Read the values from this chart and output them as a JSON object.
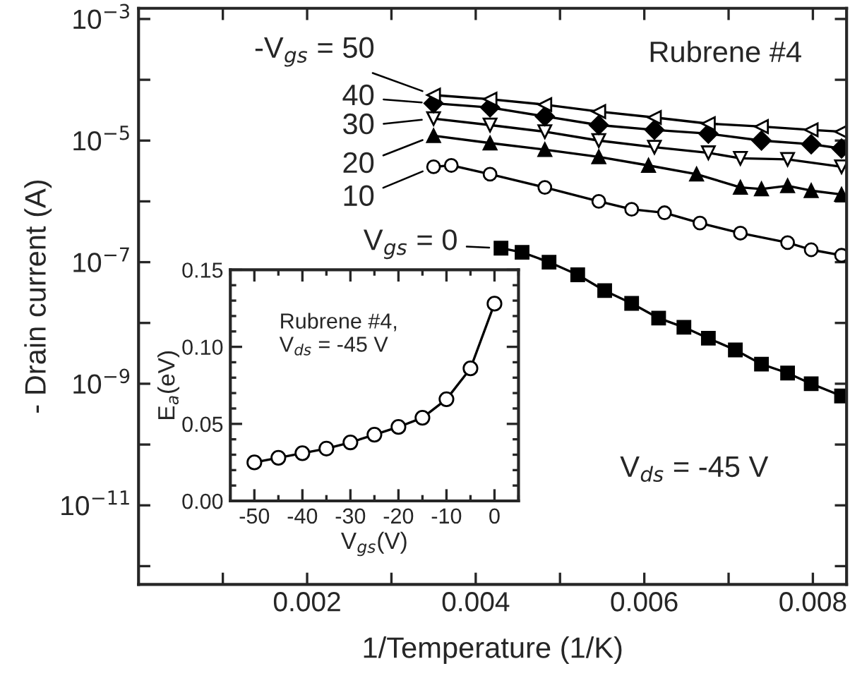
{
  "chart_data": [
    {
      "type": "line",
      "xlabel": "1/Temperature (1/K)",
      "ylabel": "- Drain current (A)",
      "log": "y",
      "grid": false,
      "legend": "top left",
      "xlim": [
        0,
        0.0084
      ],
      "xticks": [
        {
          "value": 0.001,
          "label": null
        },
        0.002,
        {
          "value": 0.003,
          "label": null
        },
        0.004,
        {
          "value": 0.005,
          "label": null
        },
        0.006,
        {
          "value": 0.007,
          "label": null
        },
        0.008
      ],
      "ylim": [
        5e-13,
        0.0015
      ],
      "yticks": [
        {
          "value": 1e-12,
          "label": null
        },
        {
          "value": 1e-11,
          "label": "10$^{−11}$"
        },
        {
          "value": 1e-10,
          "label": null
        },
        {
          "value": 1e-09,
          "label": "10$^{−9}$"
        },
        {
          "value": 1e-08,
          "label": null
        },
        {
          "value": 1e-07,
          "label": "10$^{−7}$"
        },
        {
          "value": 1e-06,
          "label": null
        },
        {
          "value": 1e-05,
          "label": "10$^{−5}$"
        },
        {
          "value": 0.0001,
          "label": null
        },
        {
          "value": 0.001,
          "label": "10$^{−3}$"
        }
      ],
      "annotations": [
        "Rubrene #4",
        "V$_{ds}$ = -45 V"
      ],
      "series": [
        {
          "name": "V$_{gs}$ = 0",
          "color": "#000000",
          "marker": "square",
          "x": [
            0.0043,
            0.00455,
            0.00487,
            0.00521,
            0.00553,
            0.00585,
            0.00617,
            0.00647,
            0.00676,
            0.00708,
            0.00739,
            0.0077,
            0.00798,
            0.00834
          ],
          "values": [
            1.7e-07,
            1.45e-07,
            1e-07,
            6.2e-08,
            3.4e-08,
            2.1e-08,
            1.2e-08,
            8.5e-09,
            5.6e-09,
            3.6e-09,
            2.1e-09,
            1.5e-09,
            1e-09,
            6.3e-10
          ]
        },
        {
          "name": "10",
          "color": "#000000",
          "marker": "circle",
          "x": [
            0.0035,
            0.00371,
            0.00417,
            0.00482,
            0.00546,
            0.00585,
            0.00624,
            0.00666,
            0.00714,
            0.0077,
            0.00798,
            0.00834
          ],
          "values": [
            3.7e-06,
            3.9e-06,
            2.8e-06,
            1.7e-06,
            1e-06,
            7.4e-07,
            6.5e-07,
            4.4e-07,
            3e-07,
            2.1e-07,
            1.6e-07,
            1.3e-07
          ]
        },
        {
          "name": "20",
          "color": "#000000",
          "marker": "triangle",
          "x": [
            0.0035,
            0.00417,
            0.00482,
            0.00546,
            0.00605,
            0.00662,
            0.00714,
            0.00739,
            0.0077,
            0.00798,
            0.00834
          ],
          "values": [
            1.2e-05,
            9.1e-06,
            7.1e-06,
            5.4e-06,
            3.9e-06,
            2.8e-06,
            1.7e-06,
            1.6e-06,
            1.8e-06,
            1.5e-06,
            1.3e-06
          ]
        },
        {
          "name": "30",
          "color": "#000000",
          "marker": "triangle_down",
          "x": [
            0.0035,
            0.00417,
            0.00482,
            0.00546,
            0.00612,
            0.00676,
            0.00714,
            0.0077,
            0.00834
          ],
          "values": [
            2.3e-05,
            1.8e-05,
            1.4e-05,
            1e-05,
            7.8e-06,
            6.3e-06,
            5.1e-06,
            4.9e-06,
            3.7e-06
          ]
        },
        {
          "name": "40",
          "color": "#000000",
          "marker": "diamond",
          "x": [
            0.0035,
            0.00417,
            0.00482,
            0.00546,
            0.00612,
            0.00676,
            0.00739,
            0.00798,
            0.00834
          ],
          "values": [
            4.1e-05,
            3.5e-05,
            2.5e-05,
            1.8e-05,
            1.5e-05,
            1.3e-05,
            1e-05,
            8.7e-06,
            7.4e-06
          ]
        },
        {
          "name": "-V$_{gs}$ = 50",
          "color": "#000000",
          "marker": "triangle_left",
          "x": [
            0.0035,
            0.00417,
            0.00482,
            0.00546,
            0.00612,
            0.00676,
            0.00739,
            0.00798,
            0.00834
          ],
          "values": [
            5.6e-05,
            4.8e-05,
            3.9e-05,
            3e-05,
            2.4e-05,
            1.9e-05,
            1.7e-05,
            1.5e-05,
            1.4e-05
          ]
        }
      ]
    },
    {
      "type": "line",
      "xlabel": "V$_{gs}$(V)",
      "ylabel": "E$_{a}$(eV)",
      "legend": false,
      "grid": false,
      "marker": "circle",
      "xlim": [
        -55,
        5
      ],
      "xticks": [
        -50,
        -40,
        -30,
        -20,
        -10,
        0
      ],
      "ylim": [
        0,
        0.15
      ],
      "yticks": [
        {
          "value": 0,
          "label": "0.00"
        },
        {
          "value": 0.05,
          "label": "0.05"
        },
        {
          "value": 0.1,
          "label": "0.10"
        },
        {
          "value": 0.15,
          "label": "0.15"
        }
      ],
      "annotations": [
        "Rubrene #4,\nV$_{ds}$ = -45 V"
      ],
      "series": [
        {
          "color": "#000000",
          "x": [
            -50,
            -45,
            -40,
            -35,
            -30,
            -25,
            -20,
            -15,
            -10,
            -5,
            0
          ],
          "values": [
            0.025,
            0.028,
            0.031,
            0.034,
            0.038,
            0.043,
            0.048,
            0.054,
            0.066,
            0.086,
            0.128
          ]
        }
      ]
    }
  ]
}
